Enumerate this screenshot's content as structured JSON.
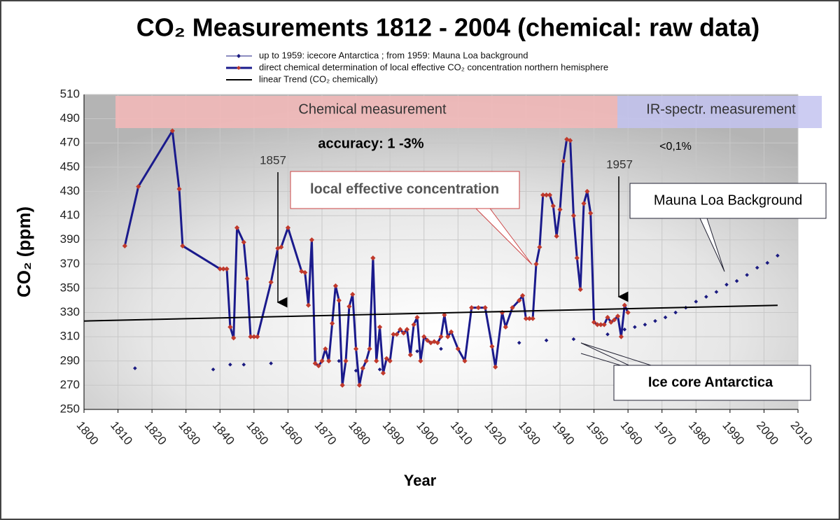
{
  "chart_data": {
    "type": "line",
    "title": "CO₂ Measurements 1812 - 2004 (chemical: raw data)",
    "x_label": "Year",
    "y_label": "CO₂ (ppm)",
    "xlim": [
      1800,
      2010
    ],
    "xticks": [
      1800,
      1810,
      1820,
      1830,
      1840,
      1850,
      1860,
      1870,
      1880,
      1890,
      1900,
      1910,
      1920,
      1930,
      1940,
      1950,
      1960,
      1970,
      1980,
      1990,
      2000,
      2010
    ],
    "ylim": [
      250,
      510
    ],
    "yticks": [
      250,
      270,
      290,
      310,
      330,
      350,
      370,
      390,
      410,
      430,
      450,
      470,
      490,
      510
    ],
    "grid": true,
    "series": [
      {
        "name": "up to 1959: icecore   Antarctica ; from 1959: Mauna Loa background",
        "color": "#1a1a80",
        "style": "markers",
        "x": [
          1815,
          1838,
          1843,
          1847,
          1855,
          1875,
          1880,
          1887,
          1898,
          1905,
          1928,
          1936,
          1944,
          1954,
          1959,
          1962,
          1965,
          1968,
          1971,
          1974,
          1977,
          1980,
          1983,
          1986,
          1989,
          1992,
          1995,
          1998,
          2001,
          2004
        ],
        "values": [
          284,
          283,
          287,
          287,
          288,
          290,
          282,
          283,
          298,
          300,
          305,
          307,
          308,
          312,
          316,
          318,
          320,
          323,
          326,
          330,
          334,
          339,
          343,
          347,
          353,
          356,
          361,
          367,
          371,
          377
        ]
      },
      {
        "name": "direct chemical determination of local effective CO₂ concentration northern hemisphere",
        "color": "#1a1a8c",
        "marker_color": "#c0392b",
        "style": "line-markers",
        "x": [
          1812,
          1816,
          1826,
          1828,
          1829,
          1840,
          1841,
          1842,
          1843,
          1844,
          1845,
          1847,
          1848,
          1849,
          1850,
          1851,
          1855,
          1857,
          1858,
          1860,
          1864,
          1865,
          1866,
          1867,
          1868,
          1869,
          1870,
          1871,
          1872,
          1873,
          1874,
          1875,
          1876,
          1877,
          1878,
          1879,
          1880,
          1881,
          1882,
          1883,
          1884,
          1885,
          1886,
          1887,
          1888,
          1889,
          1890,
          1891,
          1892,
          1893,
          1894,
          1895,
          1896,
          1897,
          1898,
          1899,
          1900,
          1901,
          1902,
          1903,
          1904,
          1905,
          1906,
          1907,
          1908,
          1910,
          1912,
          1914,
          1916,
          1918,
          1920,
          1921,
          1923,
          1924,
          1926,
          1928,
          1929,
          1930,
          1931,
          1932,
          1933,
          1934,
          1935,
          1936,
          1937,
          1938,
          1939,
          1940,
          1941,
          1942,
          1943,
          1944,
          1945,
          1946,
          1947,
          1948,
          1949,
          1950,
          1951,
          1952,
          1953,
          1954,
          1955,
          1956,
          1957,
          1958,
          1959,
          1960
        ],
        "values": [
          385,
          434,
          480,
          432,
          385,
          366,
          366,
          366,
          318,
          309,
          400,
          388,
          358,
          310,
          310,
          310,
          355,
          383,
          384,
          400,
          364,
          363,
          336,
          390,
          288,
          286,
          290,
          300,
          290,
          321,
          352,
          340,
          270,
          290,
          335,
          345,
          300,
          270,
          284,
          290,
          300,
          375,
          290,
          318,
          280,
          292,
          290,
          312,
          312,
          316,
          313,
          316,
          295,
          320,
          326,
          290,
          310,
          307,
          305,
          306,
          305,
          310,
          328,
          310,
          314,
          300,
          290,
          334,
          334,
          334,
          302,
          285,
          330,
          318,
          334,
          340,
          344,
          325,
          325,
          325,
          370,
          384,
          427,
          427,
          427,
          418,
          393,
          415,
          455,
          473,
          472,
          410,
          375,
          349,
          420,
          430,
          412,
          322,
          320,
          320,
          320,
          326,
          322,
          324,
          327,
          310,
          336,
          330
        ]
      },
      {
        "name": "linear Trend (CO₂ chemically)",
        "color": "#000000",
        "style": "line",
        "x": [
          1800,
          2004
        ],
        "values": [
          323,
          336
        ]
      }
    ],
    "annotations": {
      "chemical_band": "Chemical measurement",
      "ir_band": "IR-spectr. measurement",
      "accuracy": "accuracy: 1 -3%",
      "ir_accuracy": "<0,1%",
      "arrow_1857": "1857",
      "arrow_1957": "1957",
      "local": "local effective concentration",
      "mauna_loa": "Mauna Loa Background",
      "ice_core": "Ice core Antarctica"
    }
  }
}
